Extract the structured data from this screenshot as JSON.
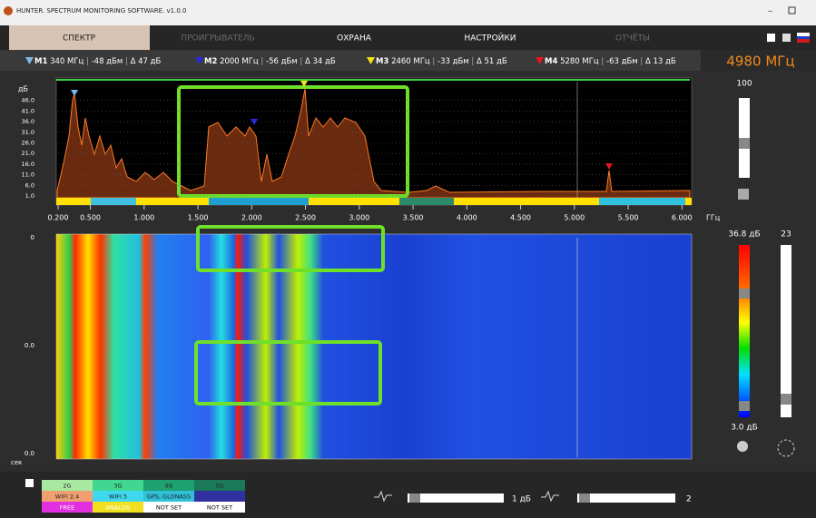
{
  "window": {
    "title": "HUNTER. SPECTRUM MONITORING SOFTWARE. v1.0.0"
  },
  "tabs": [
    "СПЕКТР",
    "ПРОИГРЫВАТЕЛЬ",
    "ОХРАНА",
    "НАСТРОЙКИ",
    "ОТЧЁТЫ"
  ],
  "markers": [
    {
      "name": "M1",
      "freq": "340 МГц",
      "level": "-48 дБм",
      "delta": "Δ 47 дБ",
      "color": "#7ab8e8"
    },
    {
      "name": "M2",
      "freq": "2000 МГц",
      "level": "-56 дБм",
      "delta": "Δ 34 дБ",
      "color": "#2a2ae0"
    },
    {
      "name": "M3",
      "freq": "2460 МГц",
      "level": "-33 дБм",
      "delta": "Δ 51 дБ",
      "color": "#f2e21a"
    },
    {
      "name": "M4",
      "freq": "5280 МГц",
      "level": "-63 дБм",
      "delta": "Δ 13 дБ",
      "color": "#e8141e"
    }
  ],
  "current_freq": "4980 МГц",
  "spectrum": {
    "y_unit": "дБ",
    "x_unit": "ГГц",
    "yticks": [
      {
        "value": 46,
        "label": "46.0"
      },
      {
        "value": 41,
        "label": "41.0"
      },
      {
        "value": 36,
        "label": "36.0"
      },
      {
        "value": 31,
        "label": "31.0"
      },
      {
        "value": 26,
        "label": "26.0"
      },
      {
        "value": 21,
        "label": "21.0"
      },
      {
        "value": 16,
        "label": "16.0"
      },
      {
        "value": 11,
        "label": "11.0"
      },
      {
        "value": 6,
        "label": "6.0"
      },
      {
        "value": 1,
        "label": "1.0"
      }
    ],
    "xticks": [
      {
        "value": 0.2,
        "label": "0.200"
      },
      {
        "value": 0.5,
        "label": "0.500"
      },
      {
        "value": 1,
        "label": "1.000"
      },
      {
        "value": 1.5,
        "label": "1.500"
      },
      {
        "value": 2,
        "label": "2.000"
      },
      {
        "value": 2.5,
        "label": "2.500"
      },
      {
        "value": 3,
        "label": "3.000"
      },
      {
        "value": 3.5,
        "label": "3.500"
      },
      {
        "value": 4,
        "label": "4.000"
      },
      {
        "value": 4.5,
        "label": "4.500"
      },
      {
        "value": 5,
        "label": "5.000"
      },
      {
        "value": 5.5,
        "label": "5.500"
      },
      {
        "value": 6,
        "label": "6.000"
      }
    ]
  },
  "waterfall": {
    "y_unit": "сек",
    "yticks": [
      "0",
      "0.0",
      "0.0"
    ]
  },
  "right_panel": {
    "level_top": "100",
    "max_db": "36.8 дБ",
    "min_db": "3.0 дБ",
    "speed": "23"
  },
  "legend": {
    "rows": [
      [
        "2G",
        "3G",
        "4G",
        "5G"
      ],
      [
        "WIFI 2.4",
        "WIFI 5",
        "GPS, GLONASS"
      ],
      [
        "FREE",
        "ANALOG",
        "NOT SET",
        "NOT SET"
      ]
    ]
  },
  "bottom": {
    "attenuation": "1 дБ",
    "averaging": "2"
  }
}
